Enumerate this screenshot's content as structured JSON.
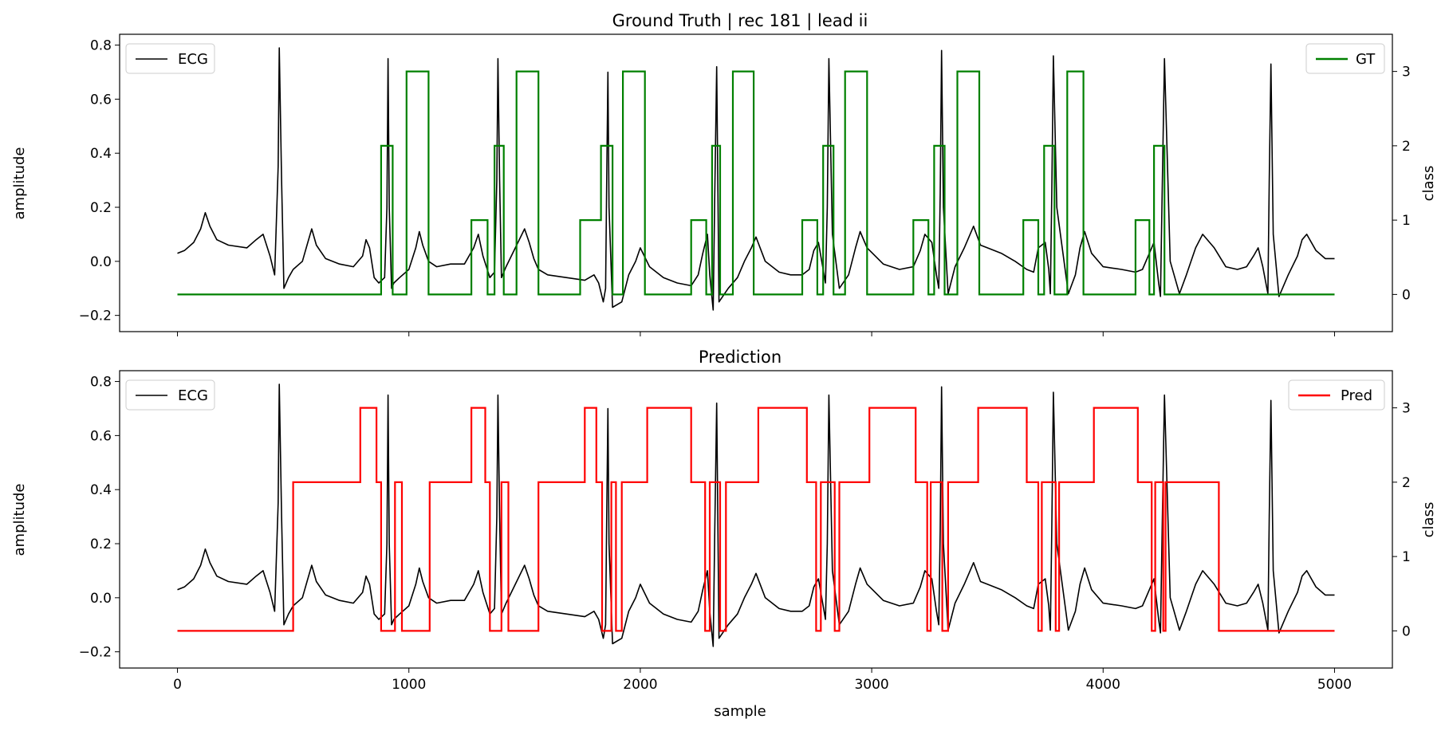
{
  "chart_data": [
    {
      "type": "line",
      "title": "Ground Truth | rec 181 | lead ii",
      "xlabel": "",
      "ylabel": "amplitude",
      "y2label": "class",
      "xlim": [
        -250,
        5250
      ],
      "ylim": [
        -0.26,
        0.84
      ],
      "y2lim": [
        -0.5,
        3.5
      ],
      "xticks": [
        "0",
        "1000",
        "2000",
        "3000",
        "4000",
        "5000"
      ],
      "yticks": [
        "−0.2",
        "0.0",
        "0.2",
        "0.4",
        "0.6",
        "0.8"
      ],
      "y2ticks": [
        "0",
        "1",
        "2",
        "3"
      ],
      "grid": false,
      "legend_left": "top-left",
      "legend_right": "top-right",
      "ecg_color": "#000000",
      "series_color": "#008000",
      "ecg": {
        "name": "ECG",
        "x": [
          0,
          30,
          70,
          100,
          120,
          140,
          170,
          220,
          300,
          340,
          370,
          400,
          420,
          435,
          440,
          450,
          460,
          480,
          500,
          540,
          560,
          580,
          600,
          640,
          700,
          760,
          800,
          815,
          830,
          850,
          870,
          895,
          905,
          910,
          915,
          925,
          935,
          960,
          1000,
          1030,
          1045,
          1060,
          1085,
          1120,
          1180,
          1240,
          1280,
          1300,
          1320,
          1350,
          1370,
          1380,
          1385,
          1392,
          1400,
          1420,
          1460,
          1500,
          1520,
          1540,
          1560,
          1600,
          1680,
          1760,
          1800,
          1820,
          1840,
          1850,
          1855,
          1860,
          1865,
          1880,
          1920,
          1950,
          1980,
          2000,
          2040,
          2100,
          2160,
          2220,
          2250,
          2270,
          2290,
          2300,
          2315,
          2322,
          2330,
          2340,
          2380,
          2420,
          2450,
          2480,
          2500,
          2540,
          2600,
          2650,
          2700,
          2730,
          2750,
          2770,
          2790,
          2800,
          2808,
          2815,
          2830,
          2860,
          2900,
          2930,
          2950,
          2980,
          3050,
          3120,
          3180,
          3210,
          3230,
          3260,
          3280,
          3290,
          3296,
          3302,
          3310,
          3330,
          3360,
          3400,
          3440,
          3470,
          3500,
          3560,
          3620,
          3670,
          3700,
          3720,
          3750,
          3765,
          3772,
          3778,
          3785,
          3800,
          3850,
          3880,
          3900,
          3920,
          3950,
          4000,
          4080,
          4140,
          4170,
          4200,
          4220,
          4240,
          4248,
          4255,
          4265,
          4290,
          4330,
          4360,
          4380,
          4400,
          4430,
          4480,
          4530,
          4580,
          4620,
          4650,
          4670,
          4690,
          4712,
          4718,
          4725,
          4735,
          4760,
          4800,
          4840,
          4860,
          4880,
          4920,
          4960,
          5000
        ],
        "y": [
          0.03,
          0.04,
          0.07,
          0.12,
          0.18,
          0.13,
          0.08,
          0.06,
          0.05,
          0.08,
          0.1,
          0.02,
          -0.05,
          0.35,
          0.79,
          0.3,
          -0.1,
          -0.06,
          -0.03,
          0.0,
          0.06,
          0.12,
          0.06,
          0.01,
          -0.01,
          -0.02,
          0.02,
          0.08,
          0.05,
          -0.06,
          -0.08,
          -0.06,
          0.2,
          0.75,
          0.2,
          -0.1,
          -0.08,
          -0.06,
          -0.03,
          0.05,
          0.11,
          0.06,
          0.0,
          -0.02,
          -0.01,
          -0.01,
          0.05,
          0.1,
          0.02,
          -0.06,
          -0.04,
          0.3,
          0.75,
          0.3,
          -0.06,
          -0.02,
          0.05,
          0.12,
          0.07,
          0.01,
          -0.03,
          -0.05,
          -0.06,
          -0.07,
          -0.05,
          -0.08,
          -0.15,
          -0.1,
          0.3,
          0.7,
          0.2,
          -0.17,
          -0.15,
          -0.05,
          0.0,
          0.05,
          -0.02,
          -0.06,
          -0.08,
          -0.09,
          -0.05,
          0.03,
          0.1,
          -0.05,
          -0.18,
          0.25,
          0.72,
          -0.15,
          -0.1,
          -0.06,
          0.0,
          0.05,
          0.09,
          0.0,
          -0.04,
          -0.05,
          -0.05,
          -0.03,
          0.04,
          0.07,
          -0.03,
          -0.08,
          0.2,
          0.75,
          0.1,
          -0.1,
          -0.05,
          0.05,
          0.11,
          0.05,
          -0.01,
          -0.03,
          -0.02,
          0.04,
          0.1,
          0.07,
          -0.05,
          -0.1,
          0.25,
          0.78,
          0.2,
          -0.12,
          -0.02,
          0.05,
          0.13,
          0.06,
          0.05,
          0.03,
          0.0,
          -0.03,
          -0.04,
          0.05,
          0.07,
          -0.03,
          -0.12,
          0.25,
          0.76,
          0.2,
          -0.12,
          -0.05,
          0.05,
          0.11,
          0.03,
          -0.02,
          -0.03,
          -0.04,
          -0.03,
          0.03,
          0.07,
          -0.08,
          -0.13,
          0.25,
          0.75,
          0.0,
          -0.12,
          -0.05,
          0.0,
          0.05,
          0.1,
          0.05,
          -0.02,
          -0.03,
          -0.02,
          0.02,
          0.05,
          -0.02,
          -0.12,
          0.3,
          0.73,
          0.1,
          -0.13,
          -0.05,
          0.02,
          0.08,
          0.1,
          0.04,
          0.01,
          0.01
        ]
      },
      "series": [
        {
          "name": "GT",
          "x": [
            0,
            880,
            880,
            930,
            930,
            990,
            990,
            1085,
            1085,
            1270,
            1270,
            1340,
            1340,
            1370,
            1370,
            1410,
            1410,
            1465,
            1465,
            1560,
            1560,
            1740,
            1740,
            1830,
            1830,
            1880,
            1880,
            1925,
            1925,
            2020,
            2020,
            2220,
            2220,
            2285,
            2285,
            2310,
            2310,
            2345,
            2345,
            2400,
            2400,
            2490,
            2490,
            2700,
            2700,
            2765,
            2765,
            2790,
            2790,
            2835,
            2835,
            2885,
            2885,
            2980,
            2980,
            3180,
            3180,
            3245,
            3245,
            3270,
            3270,
            3315,
            3315,
            3370,
            3370,
            3465,
            3465,
            3655,
            3655,
            3720,
            3720,
            3745,
            3745,
            3790,
            3790,
            3845,
            3845,
            3915,
            3915,
            4140,
            4140,
            4200,
            4200,
            4220,
            4220,
            4265,
            4265,
            5000
          ],
          "y": [
            0,
            0,
            2,
            2,
            0,
            0,
            3,
            3,
            0,
            0,
            1,
            1,
            0,
            0,
            2,
            2,
            0,
            0,
            3,
            3,
            0,
            0,
            1,
            1,
            2,
            2,
            0,
            0,
            3,
            3,
            0,
            0,
            1,
            1,
            0,
            0,
            2,
            2,
            0,
            0,
            3,
            3,
            0,
            0,
            1,
            1,
            0,
            0,
            2,
            2,
            0,
            0,
            3,
            3,
            0,
            0,
            1,
            1,
            0,
            0,
            2,
            2,
            0,
            0,
            3,
            3,
            0,
            0,
            1,
            1,
            0,
            0,
            2,
            2,
            0,
            0,
            3,
            3,
            0,
            0,
            1,
            1,
            0,
            0,
            2,
            2,
            0,
            0
          ]
        }
      ]
    },
    {
      "type": "line",
      "title": "Prediction",
      "xlabel": "sample",
      "ylabel": "amplitude",
      "y2label": "class",
      "xlim": [
        -250,
        5250
      ],
      "ylim": [
        -0.26,
        0.84
      ],
      "y2lim": [
        -0.5,
        3.5
      ],
      "xticks": [
        "0",
        "1000",
        "2000",
        "3000",
        "4000",
        "5000"
      ],
      "yticks": [
        "−0.2",
        "0.0",
        "0.2",
        "0.4",
        "0.6",
        "0.8"
      ],
      "y2ticks": [
        "0",
        "1",
        "2",
        "3"
      ],
      "grid": false,
      "legend_left": "top-left",
      "legend_right": "top-right",
      "ecg_color": "#000000",
      "series_color": "#ff0000",
      "ecg_ref": 0,
      "series": [
        {
          "name": "Pred",
          "x": [
            0,
            500,
            500,
            790,
            790,
            860,
            860,
            880,
            880,
            940,
            940,
            970,
            970,
            1090,
            1090,
            1270,
            1270,
            1330,
            1330,
            1350,
            1350,
            1400,
            1400,
            1430,
            1430,
            1560,
            1560,
            1760,
            1760,
            1810,
            1810,
            1835,
            1835,
            1875,
            1875,
            1895,
            1895,
            1920,
            1920,
            2030,
            2030,
            2220,
            2220,
            2280,
            2280,
            2300,
            2300,
            2345,
            2345,
            2370,
            2370,
            2510,
            2510,
            2720,
            2720,
            2760,
            2760,
            2780,
            2780,
            2840,
            2840,
            2860,
            2860,
            2990,
            2990,
            3190,
            3190,
            3240,
            3240,
            3255,
            3255,
            3305,
            3305,
            3330,
            3330,
            3460,
            3460,
            3670,
            3670,
            3720,
            3720,
            3735,
            3735,
            3795,
            3795,
            3810,
            3810,
            3960,
            3960,
            4150,
            4150,
            4210,
            4210,
            4225,
            4225,
            4260,
            4260,
            4270,
            4270,
            4500,
            4500,
            5000
          ],
          "y": [
            0,
            0,
            2,
            2,
            3,
            3,
            2,
            2,
            0,
            0,
            2,
            2,
            0,
            0,
            2,
            2,
            3,
            3,
            2,
            2,
            0,
            0,
            2,
            2,
            0,
            0,
            2,
            2,
            3,
            3,
            2,
            2,
            0,
            0,
            2,
            2,
            0,
            0,
            2,
            2,
            3,
            3,
            2,
            2,
            0,
            0,
            2,
            2,
            0,
            0,
            2,
            2,
            3,
            3,
            2,
            2,
            0,
            0,
            2,
            2,
            0,
            0,
            2,
            2,
            3,
            3,
            2,
            2,
            0,
            0,
            2,
            2,
            0,
            0,
            2,
            2,
            3,
            3,
            2,
            2,
            0,
            0,
            2,
            2,
            0,
            0,
            2,
            2,
            3,
            3,
            2,
            2,
            0,
            0,
            2,
            2,
            0,
            0,
            2,
            2,
            0,
            0
          ]
        }
      ]
    }
  ]
}
